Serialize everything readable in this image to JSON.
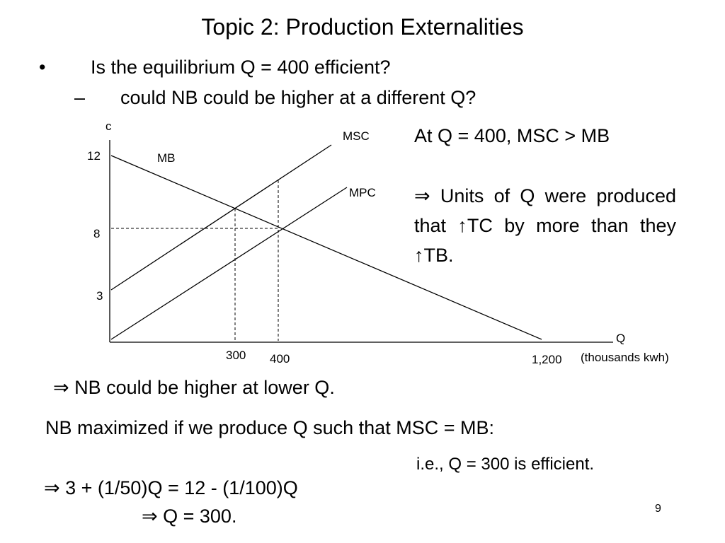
{
  "slide": {
    "title": "Topic 2: Production Externalities",
    "bullet": {
      "marker": "•",
      "text": "Is the equilibrium Q = 400 efficient?"
    },
    "sub_bullet": {
      "marker": "–",
      "text": "could NB could be higher at a different Q?"
    },
    "diagram": {
      "y_axis_label": "c",
      "x_axis_label": "Q",
      "x_axis_unit": "(thousands kwh)",
      "y_ticks": [
        "12",
        "8",
        "3"
      ],
      "x_ticks": [
        "300",
        "400",
        "1,200"
      ],
      "curves": [
        "MB",
        "MSC",
        "MPC"
      ]
    },
    "note_heading": "At Q = 400, MSC > MB",
    "note_body": "⇒ Units of Q were produced that ↑TC by more than they ↑TB.",
    "conclusion": "⇒ NB could be higher at lower Q.",
    "condition": "NB maximized if we produce Q such that MSC = MB:",
    "result": "i.e., Q = 300 is efficient.",
    "equation": "⇒ 3 + (1/50)Q = 12 - (1/100)Q",
    "solution": "⇒ Q = 300.",
    "page_number": "9"
  }
}
